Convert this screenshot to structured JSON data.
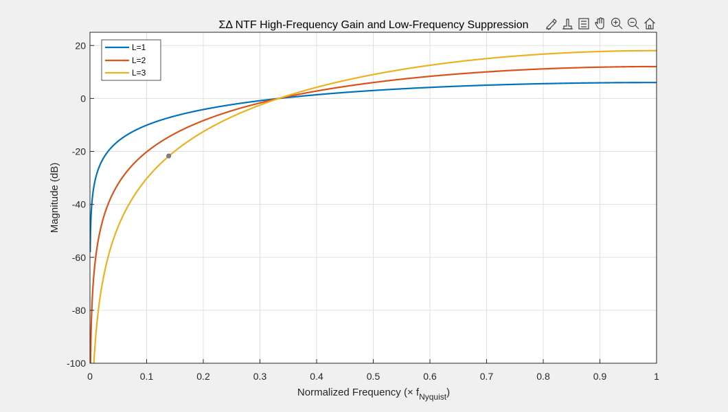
{
  "chart_data": {
    "type": "line",
    "title": "ΣΔ NTF High-Frequency Gain and Low-Frequency Suppression",
    "xlabel_main": "Normalized Frequency (",
    "xlabel_times": "×",
    "xlabel_f": "f",
    "xlabel_sub": "Nyquist",
    "xlabel_close": ")",
    "ylabel": "Magnitude (dB)",
    "xlim": [
      0,
      1
    ],
    "ylim": [
      -100,
      25
    ],
    "xticks": [
      "0",
      "0.1",
      "0.2",
      "0.3",
      "0.4",
      "0.5",
      "0.6",
      "0.7",
      "0.8",
      "0.9",
      "1"
    ],
    "yticks": [
      "-100",
      "-80",
      "-60",
      "-40",
      "-20",
      "0",
      "20"
    ],
    "grid": true,
    "legend_position": "top-left",
    "series": [
      {
        "name": "L=1",
        "order": 1,
        "color": "#0072bd"
      },
      {
        "name": "L=2",
        "order": 2,
        "color": "#d95319"
      },
      {
        "name": "L=3",
        "order": 3,
        "color": "#edb120"
      }
    ],
    "marker": {
      "x": 0.139,
      "y": -21.7,
      "color": "#808080"
    }
  },
  "toolbar": {
    "icons": [
      "brush-icon",
      "data-tips-icon",
      "legend-icon",
      "pan-icon",
      "zoom-in-icon",
      "zoom-out-icon",
      "home-icon"
    ]
  }
}
